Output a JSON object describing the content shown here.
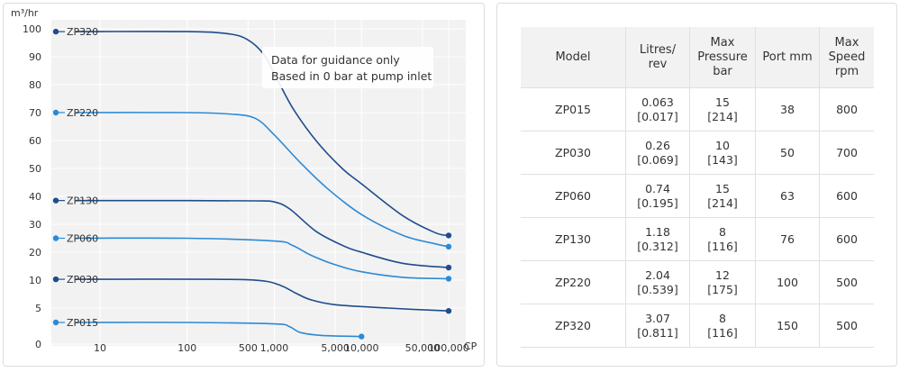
{
  "chart_data": {
    "type": "line",
    "y_unit_label": "m³/hr",
    "x_unit_label": "CP",
    "annotation": [
      "Data for guidance only",
      "Based in 0 bar at pump inlet"
    ],
    "grid": true,
    "x_scale": "log",
    "y_scale": "piecewise",
    "x_ticks": [
      {
        "v": 10,
        "label": "10"
      },
      {
        "v": 100,
        "label": "100"
      },
      {
        "v": 500,
        "label": "500"
      },
      {
        "v": 1000,
        "label": "1,000"
      },
      {
        "v": 5000,
        "label": "5,000"
      },
      {
        "v": 10000,
        "label": "10,000"
      },
      {
        "v": 50000,
        "label": "50,000"
      },
      {
        "v": 100000,
        "label": "100,000"
      }
    ],
    "y_ticks": [
      {
        "v": 0,
        "label": "0"
      },
      {
        "v": 5,
        "label": "5"
      },
      {
        "v": 10,
        "label": "10"
      },
      {
        "v": 20,
        "label": "20"
      },
      {
        "v": 30,
        "label": "30"
      },
      {
        "v": 40,
        "label": "40"
      },
      {
        "v": 50,
        "label": "50"
      },
      {
        "v": 60,
        "label": "60"
      },
      {
        "v": 70,
        "label": "70"
      },
      {
        "v": 80,
        "label": "80"
      },
      {
        "v": 90,
        "label": "90"
      },
      {
        "v": 100,
        "label": "100"
      }
    ],
    "series": [
      {
        "name": "ZP320",
        "color": "#1e4d8c",
        "points": [
          [
            3,
            99
          ],
          [
            100,
            99
          ],
          [
            300,
            98.2
          ],
          [
            500,
            96
          ],
          [
            750,
            91
          ],
          [
            1000,
            84
          ],
          [
            1600,
            72
          ],
          [
            3000,
            60
          ],
          [
            6000,
            50
          ],
          [
            10000,
            44.5
          ],
          [
            30000,
            33
          ],
          [
            70000,
            27
          ],
          [
            100000,
            26
          ]
        ]
      },
      {
        "name": "ZP220",
        "color": "#2b8ad6",
        "points": [
          [
            3,
            70
          ],
          [
            100,
            70
          ],
          [
            300,
            69.5
          ],
          [
            600,
            68
          ],
          [
            1000,
            62
          ],
          [
            2000,
            52
          ],
          [
            4000,
            43
          ],
          [
            10000,
            33.5
          ],
          [
            30000,
            26
          ],
          [
            70000,
            23
          ],
          [
            100000,
            22
          ]
        ]
      },
      {
        "name": "ZP130",
        "color": "#1e4d8c",
        "points": [
          [
            3,
            38.5
          ],
          [
            100,
            38.5
          ],
          [
            600,
            38.4
          ],
          [
            1000,
            38
          ],
          [
            1500,
            35.5
          ],
          [
            3000,
            27.5
          ],
          [
            6000,
            22.5
          ],
          [
            10000,
            20
          ],
          [
            30000,
            16
          ],
          [
            100000,
            14.5
          ]
        ]
      },
      {
        "name": "ZP060",
        "color": "#2b8ad6",
        "points": [
          [
            3,
            25
          ],
          [
            100,
            25
          ],
          [
            1000,
            24
          ],
          [
            1600,
            22.5
          ],
          [
            2600,
            19
          ],
          [
            5000,
            15.5
          ],
          [
            10000,
            13
          ],
          [
            30000,
            11
          ],
          [
            100000,
            10.5
          ]
        ]
      },
      {
        "name": "ZP030",
        "color": "#1e4d8c",
        "points": [
          [
            3,
            10.3
          ],
          [
            200,
            10.3
          ],
          [
            700,
            9.9
          ],
          [
            1200,
            9
          ],
          [
            1800,
            7.6
          ],
          [
            2600,
            6.5
          ],
          [
            5000,
            5.6
          ],
          [
            20000,
            5
          ],
          [
            100000,
            4.6
          ]
        ]
      },
      {
        "name": "ZP015",
        "color": "#2b8ad6",
        "points": [
          [
            3,
            3
          ],
          [
            100,
            3
          ],
          [
            1000,
            2.8
          ],
          [
            1500,
            2.4
          ],
          [
            2000,
            1.6
          ],
          [
            3500,
            1.2
          ],
          [
            10000,
            1.05
          ]
        ]
      }
    ]
  },
  "table": {
    "headers": [
      "Model",
      "Litres/\nrev",
      "Max\nPressure\nbar",
      "Port mm",
      "Max\nSpeed\nrpm"
    ],
    "rows": [
      [
        "ZP015",
        "0.063\n[0.017]",
        "15\n[214]",
        "38",
        "800"
      ],
      [
        "ZP030",
        "0.26\n[0.069]",
        "10\n[143]",
        "50",
        "700"
      ],
      [
        "ZP060",
        "0.74\n[0.195]",
        "15\n[214]",
        "63",
        "600"
      ],
      [
        "ZP130",
        "1.18\n[0.312]",
        "8\n[116]",
        "76",
        "600"
      ],
      [
        "ZP220",
        "2.04\n[0.539]",
        "12\n[175]",
        "100",
        "500"
      ],
      [
        "ZP320",
        "3.07\n[0.811]",
        "8\n[116]",
        "150",
        "500"
      ]
    ]
  }
}
